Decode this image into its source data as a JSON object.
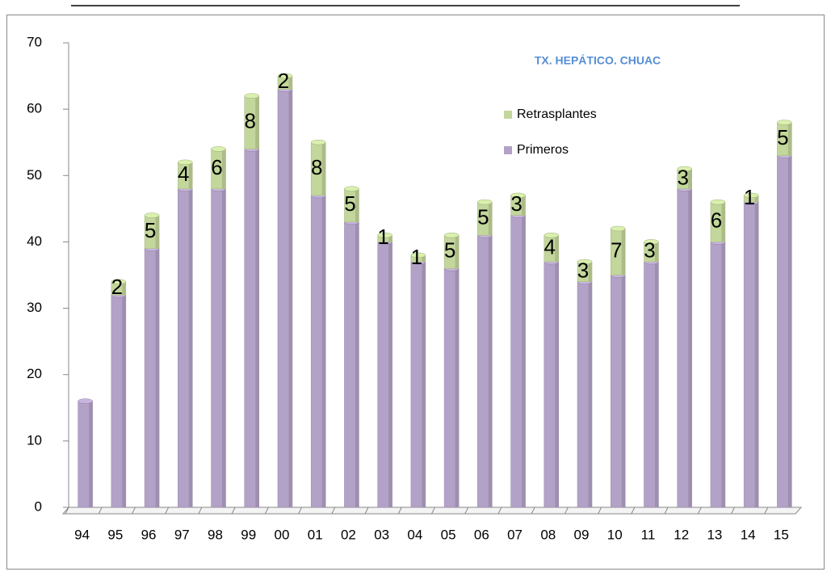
{
  "chart_data": {
    "type": "bar",
    "stacked": true,
    "title": "TX. HEPÁTICO. CHUAC",
    "categories": [
      "94",
      "95",
      "96",
      "97",
      "98",
      "99",
      "00",
      "01",
      "02",
      "03",
      "04",
      "05",
      "06",
      "07",
      "08",
      "09",
      "10",
      "11",
      "12",
      "13",
      "14",
      "15"
    ],
    "series": [
      {
        "name": "Primeros",
        "color": "#b3a2c7",
        "values": [
          16,
          32,
          39,
          48,
          48,
          54,
          63,
          47,
          43,
          40,
          37,
          36,
          41,
          44,
          37,
          34,
          35,
          37,
          48,
          40,
          46,
          53
        ]
      },
      {
        "name": "Retrasplantes",
        "color": "#c3d69b",
        "values": [
          null,
          2,
          5,
          4,
          6,
          8,
          2,
          8,
          5,
          1,
          1,
          5,
          5,
          3,
          4,
          3,
          7,
          3,
          3,
          6,
          1,
          5
        ]
      }
    ],
    "ylim": [
      0,
      70
    ],
    "yticks": [
      0,
      10,
      20,
      30,
      40,
      50,
      60,
      70
    ]
  }
}
